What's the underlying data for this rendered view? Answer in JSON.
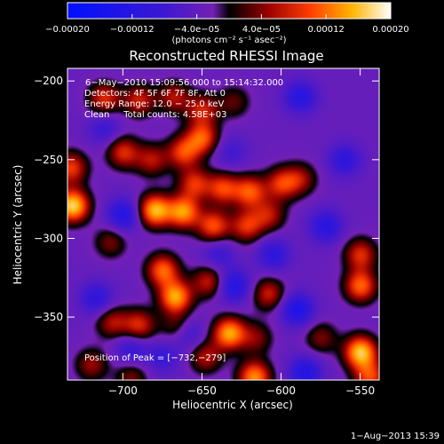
{
  "chart_data": {
    "type": "heatmap",
    "title": "Reconstructed RHESSI Image",
    "xlabel": "Heliocentric X (arcsec)",
    "ylabel": "Heliocentric Y (arcsec)",
    "xlim": [
      -735,
      -538
    ],
    "ylim": [
      -390,
      -192
    ],
    "xticks": [
      -700,
      -650,
      -600,
      -550
    ],
    "yticks": [
      -200,
      -250,
      -300,
      -350
    ],
    "xtick_labels": [
      "−700",
      "−650",
      "−600",
      "−550"
    ],
    "ytick_labels": [
      "−200",
      "−250",
      "−300",
      "−350"
    ],
    "colorbar": {
      "range": [
        -0.0002,
        0.0002
      ],
      "ticks": [
        -0.0002,
        -0.00012,
        -4e-05,
        4e-05,
        0.00012,
        0.0002
      ],
      "tick_labels": [
        "−0.00020",
        "−0.00012",
        "−4.0e−05",
        "4.0e−05",
        "0.00012",
        "0.00020"
      ],
      "units": "(photons cm⁻² s⁻¹ asec⁻²)"
    },
    "annotations": [
      "6−May−2010 15:09:56.000 to 15:14:32.000",
      "Detectors: 4F 5F 6F 7F 8F, Att 0",
      "Energy Range: 12.0 − 25.0 keV",
      "Clean     Total counts: 4.58E+03"
    ],
    "peak_label": "Position of Peak = [−732,−279]",
    "peak": [
      -732,
      -279
    ],
    "blobs": [
      {
        "x": -732,
        "y": -279,
        "v": 1.0
      },
      {
        "x": -733,
        "y": -255,
        "v": 0.6
      },
      {
        "x": -712,
        "y": -211,
        "v": 0.55
      },
      {
        "x": -690,
        "y": -212,
        "v": 0.5
      },
      {
        "x": -668,
        "y": -210,
        "v": 0.45
      },
      {
        "x": -650,
        "y": -218,
        "v": 0.5
      },
      {
        "x": -630,
        "y": -213,
        "v": 0.3
      },
      {
        "x": -700,
        "y": -245,
        "v": 0.55
      },
      {
        "x": -682,
        "y": -250,
        "v": 0.45
      },
      {
        "x": -662,
        "y": -245,
        "v": 0.6
      },
      {
        "x": -650,
        "y": -236,
        "v": 0.65
      },
      {
        "x": -655,
        "y": -265,
        "v": 0.55
      },
      {
        "x": -637,
        "y": -268,
        "v": 0.6
      },
      {
        "x": -620,
        "y": -270,
        "v": 0.65
      },
      {
        "x": -600,
        "y": -265,
        "v": 0.55
      },
      {
        "x": -588,
        "y": -262,
        "v": 0.4
      },
      {
        "x": -680,
        "y": -282,
        "v": 0.9
      },
      {
        "x": -662,
        "y": -283,
        "v": 0.8
      },
      {
        "x": -643,
        "y": -292,
        "v": 0.65
      },
      {
        "x": -622,
        "y": -292,
        "v": 0.55
      },
      {
        "x": -608,
        "y": -285,
        "v": 0.45
      },
      {
        "x": -708,
        "y": -302,
        "v": 0.35
      },
      {
        "x": -675,
        "y": -320,
        "v": 0.7
      },
      {
        "x": -667,
        "y": -337,
        "v": 0.85
      },
      {
        "x": -665,
        "y": -357,
        "v": 0.45
      },
      {
        "x": -690,
        "y": -355,
        "v": 0.55
      },
      {
        "x": -707,
        "y": -353,
        "v": 0.45
      },
      {
        "x": -646,
        "y": -327,
        "v": 0.5
      },
      {
        "x": -633,
        "y": -360,
        "v": 0.85
      },
      {
        "x": -648,
        "y": -375,
        "v": 0.45
      },
      {
        "x": -616,
        "y": -363,
        "v": 0.35
      },
      {
        "x": -608,
        "y": -335,
        "v": 0.5
      },
      {
        "x": -617,
        "y": -388,
        "v": 0.8
      },
      {
        "x": -575,
        "y": -363,
        "v": 0.35
      },
      {
        "x": -550,
        "y": -330,
        "v": 0.7
      },
      {
        "x": -550,
        "y": -310,
        "v": 0.55
      },
      {
        "x": -550,
        "y": -372,
        "v": 0.95
      },
      {
        "x": -544,
        "y": -388,
        "v": 0.6
      },
      {
        "x": -720,
        "y": -380,
        "v": 0.4
      },
      {
        "x": -695,
        "y": -388,
        "v": 0.35
      },
      {
        "x": -717,
        "y": -338,
        "v": -0.4
      },
      {
        "x": -695,
        "y": -370,
        "v": -0.35
      },
      {
        "x": -660,
        "y": -360,
        "v": -0.45
      },
      {
        "x": -630,
        "y": -330,
        "v": -0.5
      },
      {
        "x": -605,
        "y": -310,
        "v": -0.4
      },
      {
        "x": -590,
        "y": -345,
        "v": -0.55
      },
      {
        "x": -585,
        "y": -385,
        "v": -0.5
      },
      {
        "x": -572,
        "y": -292,
        "v": -0.45
      },
      {
        "x": -560,
        "y": -250,
        "v": -0.4
      },
      {
        "x": -588,
        "y": -210,
        "v": -0.45
      },
      {
        "x": -700,
        "y": -285,
        "v": -0.5
      },
      {
        "x": -712,
        "y": -230,
        "v": -0.3
      },
      {
        "x": -632,
        "y": -245,
        "v": -0.25
      },
      {
        "x": -640,
        "y": -310,
        "v": -0.3
      },
      {
        "x": -675,
        "y": -375,
        "v": -0.3
      }
    ]
  },
  "footer": {
    "timestamp": "1−Aug−2013 15:39"
  }
}
